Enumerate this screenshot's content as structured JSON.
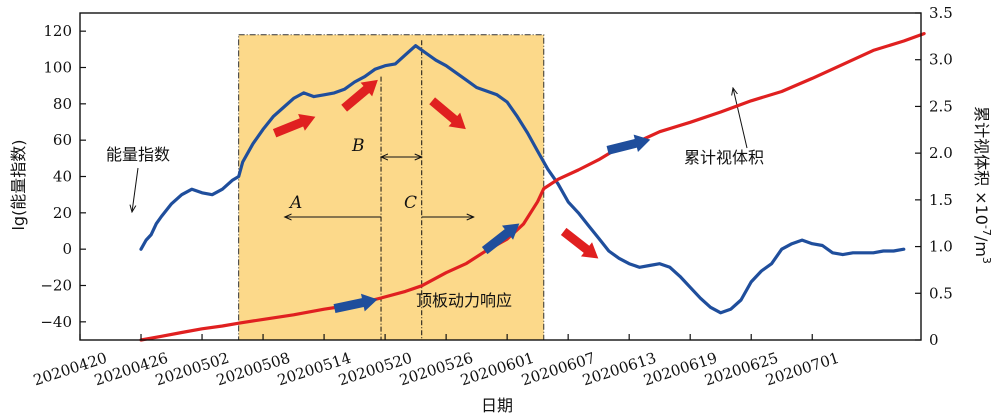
{
  "chart_data": {
    "type": "line",
    "xlabel": "日期",
    "ylabel_left": "lg(能量指数)",
    "ylabel_right_main": "累计视体积 ×10",
    "ylabel_right_exp": "-7",
    "ylabel_right_unit": "/m",
    "ylabel_right_unit_exp": "3",
    "x_ticks": [
      "20200420",
      "20200426",
      "20200502",
      "20200508",
      "20200514",
      "20200520",
      "20200526",
      "20200601",
      "20200607",
      "20200613",
      "20200619",
      "20200625",
      "20200701"
    ],
    "x_range_days": [
      0,
      78
    ],
    "ylim_left": [
      -50,
      130
    ],
    "yticks_left": [
      -40,
      -20,
      0,
      20,
      40,
      60,
      80,
      100,
      120
    ],
    "ylim_right": [
      0,
      3.5
    ],
    "yticks_right": [
      "0",
      "0.5",
      "1.0",
      "1.5",
      "2.0",
      "2.5",
      "3.0",
      "3.5"
    ],
    "series": [
      {
        "name": "能量指数",
        "axis": "left",
        "color": "#1f4e9c",
        "points": [
          [
            6,
            0
          ],
          [
            6.5,
            5
          ],
          [
            7,
            8
          ],
          [
            7.5,
            14
          ],
          [
            8,
            18
          ],
          [
            9,
            25
          ],
          [
            10,
            30
          ],
          [
            11,
            33
          ],
          [
            12,
            31
          ],
          [
            13,
            30
          ],
          [
            14,
            33
          ],
          [
            15,
            38
          ],
          [
            15.6,
            40
          ],
          [
            16,
            48
          ],
          [
            17,
            58
          ],
          [
            18,
            66
          ],
          [
            19,
            73
          ],
          [
            20,
            78
          ],
          [
            21,
            83
          ],
          [
            22,
            86
          ],
          [
            23,
            84
          ],
          [
            24,
            85
          ],
          [
            25,
            86
          ],
          [
            26,
            88
          ],
          [
            27,
            92
          ],
          [
            28,
            95
          ],
          [
            29,
            99
          ],
          [
            30,
            101
          ],
          [
            31,
            102
          ],
          [
            32,
            107
          ],
          [
            33,
            112
          ],
          [
            34,
            108
          ],
          [
            35,
            104
          ],
          [
            36,
            101
          ],
          [
            37,
            97
          ],
          [
            38,
            93
          ],
          [
            39,
            89
          ],
          [
            40,
            87
          ],
          [
            41,
            85
          ],
          [
            42,
            81
          ],
          [
            43,
            73
          ],
          [
            44,
            64
          ],
          [
            45,
            54
          ],
          [
            46,
            44
          ],
          [
            47,
            36
          ],
          [
            48,
            26
          ],
          [
            49,
            20
          ],
          [
            50,
            13
          ],
          [
            51,
            6
          ],
          [
            52,
            -1
          ],
          [
            53,
            -5
          ],
          [
            54,
            -8
          ],
          [
            55,
            -10
          ],
          [
            56,
            -9
          ],
          [
            57,
            -8
          ],
          [
            58,
            -10
          ],
          [
            59,
            -15
          ],
          [
            60,
            -21
          ],
          [
            61,
            -27
          ],
          [
            62,
            -32
          ],
          [
            63,
            -35
          ],
          [
            64,
            -33
          ],
          [
            65,
            -28
          ],
          [
            66,
            -18
          ],
          [
            67,
            -12
          ],
          [
            68,
            -8
          ],
          [
            69,
            0
          ],
          [
            70,
            3
          ],
          [
            71,
            5
          ],
          [
            72,
            3
          ],
          [
            73,
            2
          ],
          [
            74,
            -2
          ],
          [
            75,
            -3
          ],
          [
            76,
            -2
          ],
          [
            77,
            -2
          ],
          [
            78,
            -2
          ],
          [
            79,
            -1
          ],
          [
            80,
            -1
          ],
          [
            81,
            0
          ]
        ]
      },
      {
        "name": "累计视体积",
        "axis": "right",
        "color": "#e02020",
        "points": [
          [
            6,
            0.0
          ],
          [
            8,
            0.04
          ],
          [
            10,
            0.08
          ],
          [
            12,
            0.12
          ],
          [
            14,
            0.15
          ],
          [
            15.6,
            0.18
          ],
          [
            18,
            0.22
          ],
          [
            21,
            0.27
          ],
          [
            24,
            0.33
          ],
          [
            27,
            0.38
          ],
          [
            29.6,
            0.45
          ],
          [
            32,
            0.52
          ],
          [
            33.6,
            0.58
          ],
          [
            36,
            0.72
          ],
          [
            38,
            0.82
          ],
          [
            40,
            0.96
          ],
          [
            42,
            1.08
          ],
          [
            43.6,
            1.24
          ],
          [
            45,
            1.48
          ],
          [
            45.6,
            1.62
          ],
          [
            47,
            1.72
          ],
          [
            49,
            1.82
          ],
          [
            51,
            1.93
          ],
          [
            53,
            2.06
          ],
          [
            55,
            2.13
          ],
          [
            57,
            2.23
          ],
          [
            60,
            2.33
          ],
          [
            63,
            2.44
          ],
          [
            66,
            2.56
          ],
          [
            69,
            2.66
          ],
          [
            72,
            2.8
          ],
          [
            75,
            2.95
          ],
          [
            78,
            3.1
          ],
          [
            81,
            3.2
          ],
          [
            83,
            3.28
          ]
        ]
      }
    ],
    "shaded_region": {
      "from_day": 15.6,
      "to_day": 45.6,
      "top_value_left": 118,
      "color": "#fcd98a"
    },
    "phase_lines_day": [
      29.6,
      33.6
    ],
    "annotations": {
      "energy_label": "能量指数",
      "volume_label": "累计视体积",
      "roof_label": "顶板动力响应",
      "phase_a": "A",
      "phase_b": "B",
      "phase_c": "C"
    },
    "grid": false,
    "legend": "none"
  },
  "colors": {
    "energy": "#1f4e9c",
    "volume": "#e02020",
    "shade": "#fcd98a"
  }
}
